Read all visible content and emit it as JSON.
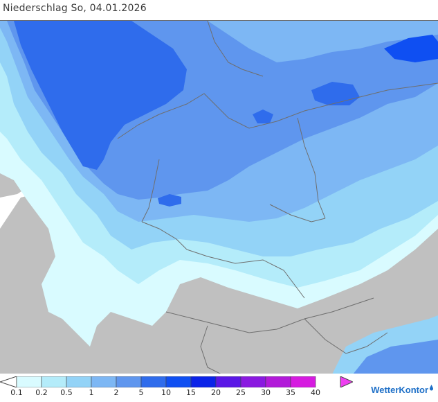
{
  "header": {
    "title": "Niederschlag So, 04.01.2026"
  },
  "map": {
    "land_color": "#c0c0c0",
    "sea_color": "#ffffff",
    "border_color": "#6e6e6e"
  },
  "legend": {
    "items": [
      {
        "label": "0.1",
        "color": "#d9fbff"
      },
      {
        "label": "0.2",
        "color": "#b4ecfa"
      },
      {
        "label": "0.5",
        "color": "#93d3f7"
      },
      {
        "label": "1",
        "color": "#7db7f4"
      },
      {
        "label": "2",
        "color": "#5f96ee"
      },
      {
        "label": "5",
        "color": "#2f6cec"
      },
      {
        "label": "10",
        "color": "#0f4ff2"
      },
      {
        "label": "15",
        "color": "#0a23e8"
      },
      {
        "label": "20",
        "color": "#5a17e6"
      },
      {
        "label": "25",
        "color": "#8a19e0"
      },
      {
        "label": "30",
        "color": "#b21ad9"
      },
      {
        "label": "35",
        "color": "#d61be0"
      },
      {
        "label": "40",
        "color": "#ee3ff0"
      }
    ]
  },
  "brand": {
    "name": "WetterKontor"
  }
}
